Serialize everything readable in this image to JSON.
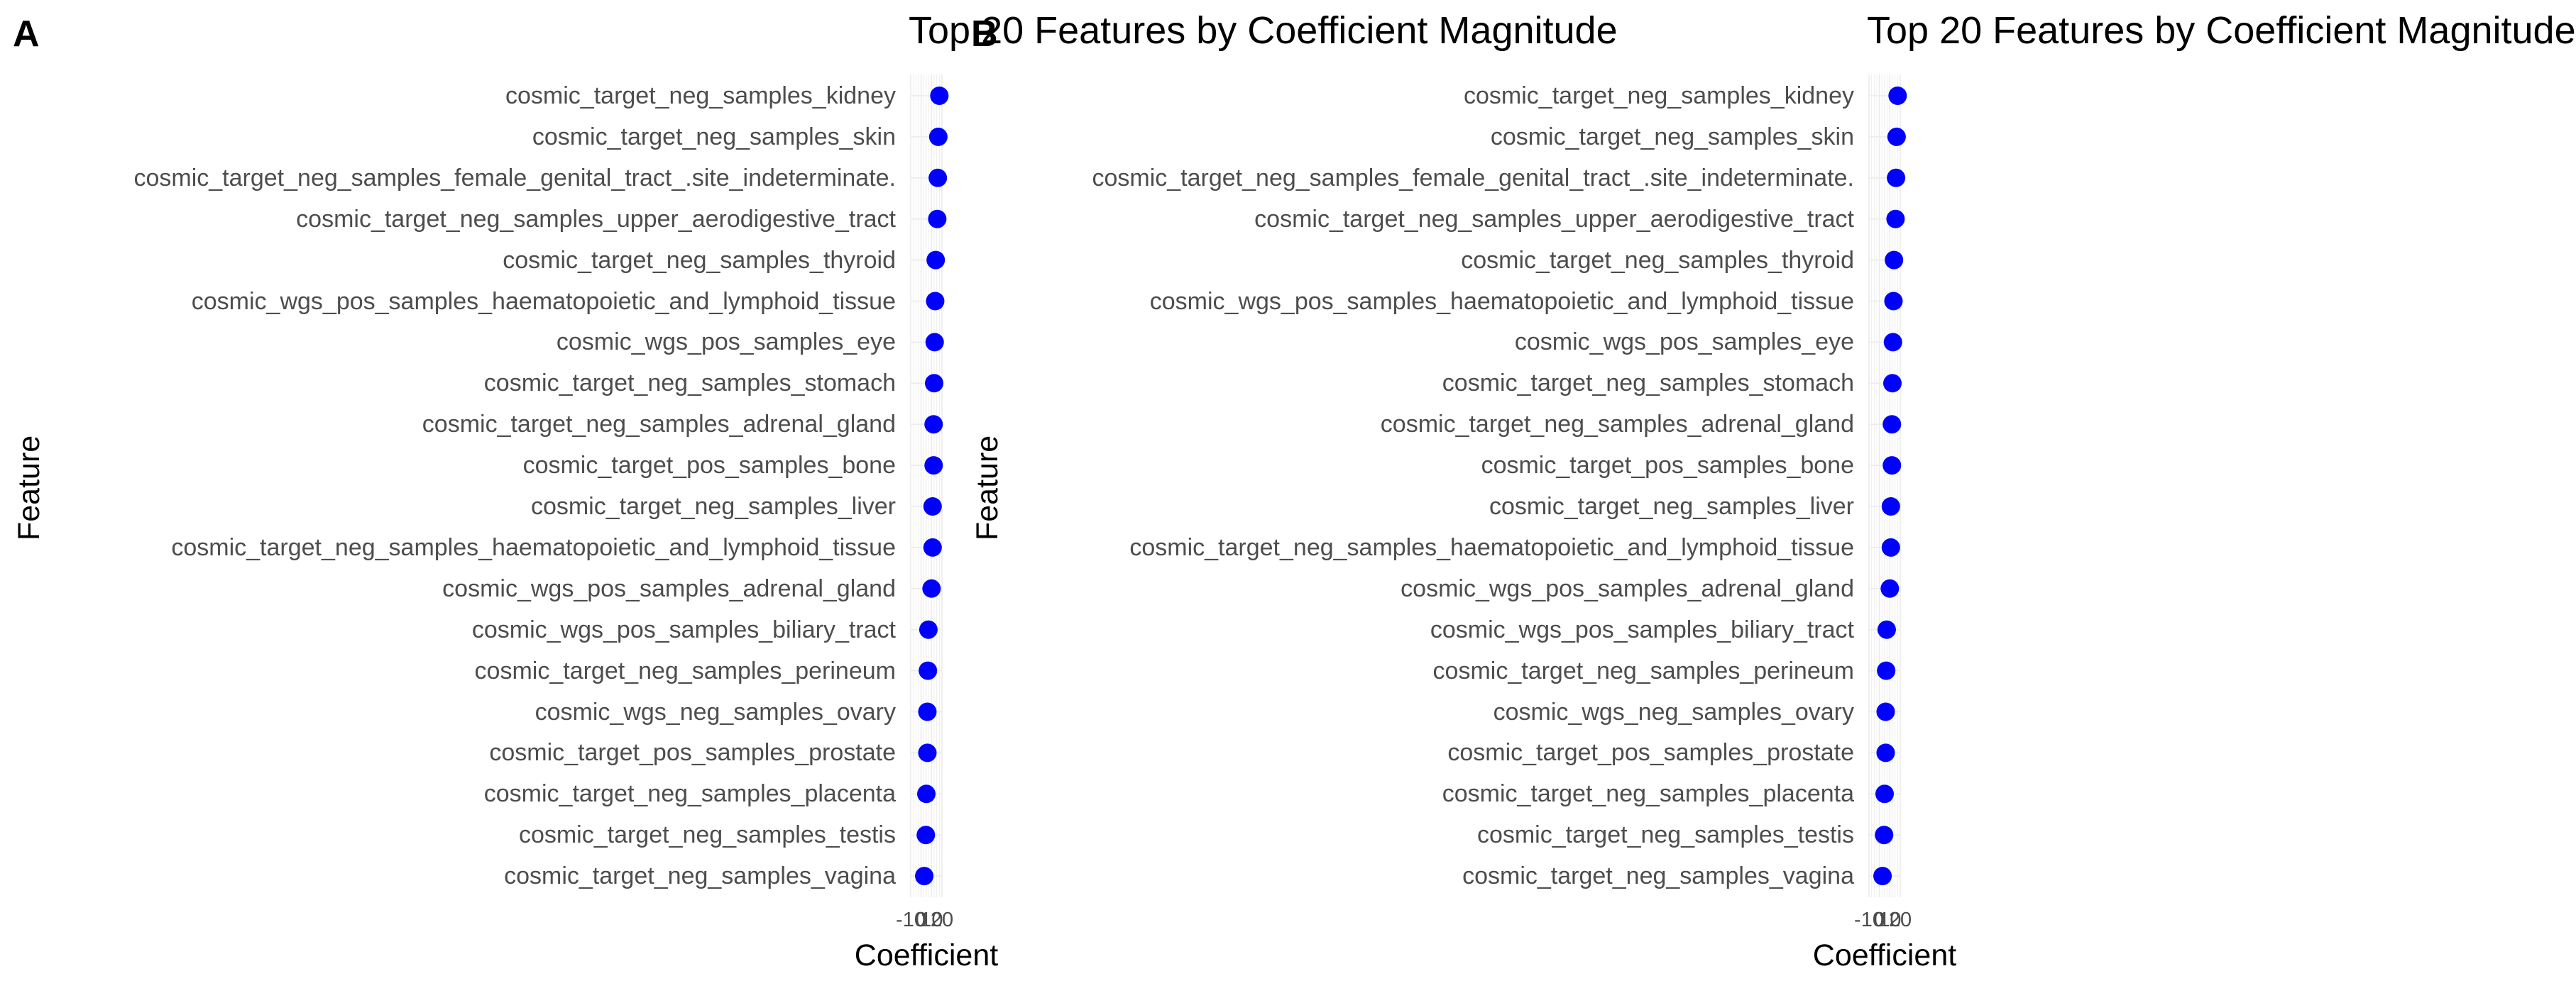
{
  "chart_data": [
    {
      "type": "scatter",
      "panel_tag": "A",
      "title": "Top 20 Features by Coefficient Magnitude",
      "xlabel": "Coefficient",
      "ylabel": "Feature",
      "x_tick_labels": [
        "-10",
        "0",
        "10",
        "20"
      ],
      "xlim": [
        -10,
        20
      ],
      "categories": [
        "cosmic_target_neg_samples_kidney",
        "cosmic_target_neg_samples_skin",
        "cosmic_target_neg_samples_female_genital_tract_.site_indeterminate.",
        "cosmic_target_neg_samples_upper_aerodigestive_tract",
        "cosmic_target_neg_samples_thyroid",
        "cosmic_wgs_pos_samples_haematopoietic_and_lymphoid_tissue",
        "cosmic_wgs_pos_samples_eye",
        "cosmic_target_neg_samples_stomach",
        "cosmic_target_neg_samples_adrenal_gland",
        "cosmic_target_pos_samples_bone",
        "cosmic_target_neg_samples_liver",
        "cosmic_target_neg_samples_haematopoietic_and_lymphoid_tissue",
        "cosmic_wgs_pos_samples_adrenal_gland",
        "cosmic_wgs_pos_samples_biliary_tract",
        "cosmic_target_neg_samples_perineum",
        "cosmic_wgs_neg_samples_ovary",
        "cosmic_target_pos_samples_prostate",
        "cosmic_target_neg_samples_placenta",
        "cosmic_target_neg_samples_testis",
        "cosmic_target_neg_samples_vagina"
      ],
      "values": [
        17.5,
        16.5,
        16,
        15.5,
        14,
        13.5,
        13,
        12.5,
        12,
        12,
        11,
        11,
        10,
        7,
        6.5,
        6,
        6,
        5,
        4.5,
        3
      ],
      "point_color": "#0000ff",
      "grid": true,
      "legend": "none"
    },
    {
      "type": "scatter",
      "panel_tag": "B",
      "title": "Top 20 Features by Coefficient Magnitude",
      "xlabel": "Coefficient",
      "ylabel": "Feature",
      "x_tick_labels": [
        "-10",
        "0",
        "10",
        "20"
      ],
      "xlim": [
        -10,
        20
      ],
      "categories": [
        "cosmic_target_neg_samples_kidney",
        "cosmic_target_neg_samples_skin",
        "cosmic_target_neg_samples_female_genital_tract_.site_indeterminate.",
        "cosmic_target_neg_samples_upper_aerodigestive_tract",
        "cosmic_target_neg_samples_thyroid",
        "cosmic_wgs_pos_samples_haematopoietic_and_lymphoid_tissue",
        "cosmic_wgs_pos_samples_eye",
        "cosmic_target_neg_samples_stomach",
        "cosmic_target_neg_samples_adrenal_gland",
        "cosmic_target_pos_samples_bone",
        "cosmic_target_neg_samples_liver",
        "cosmic_target_neg_samples_haematopoietic_and_lymphoid_tissue",
        "cosmic_wgs_pos_samples_adrenal_gland",
        "cosmic_wgs_pos_samples_biliary_tract",
        "cosmic_target_neg_samples_perineum",
        "cosmic_wgs_neg_samples_ovary",
        "cosmic_target_pos_samples_prostate",
        "cosmic_target_neg_samples_placenta",
        "cosmic_target_neg_samples_testis",
        "cosmic_target_neg_samples_vagina"
      ],
      "values": [
        17.5,
        16.5,
        16,
        15.5,
        14,
        13.5,
        13,
        12.5,
        12,
        12,
        11,
        11,
        10,
        7,
        6.5,
        6,
        6,
        5,
        4.5,
        3
      ],
      "point_color": "#0000ff",
      "grid": true,
      "legend": "none"
    }
  ]
}
